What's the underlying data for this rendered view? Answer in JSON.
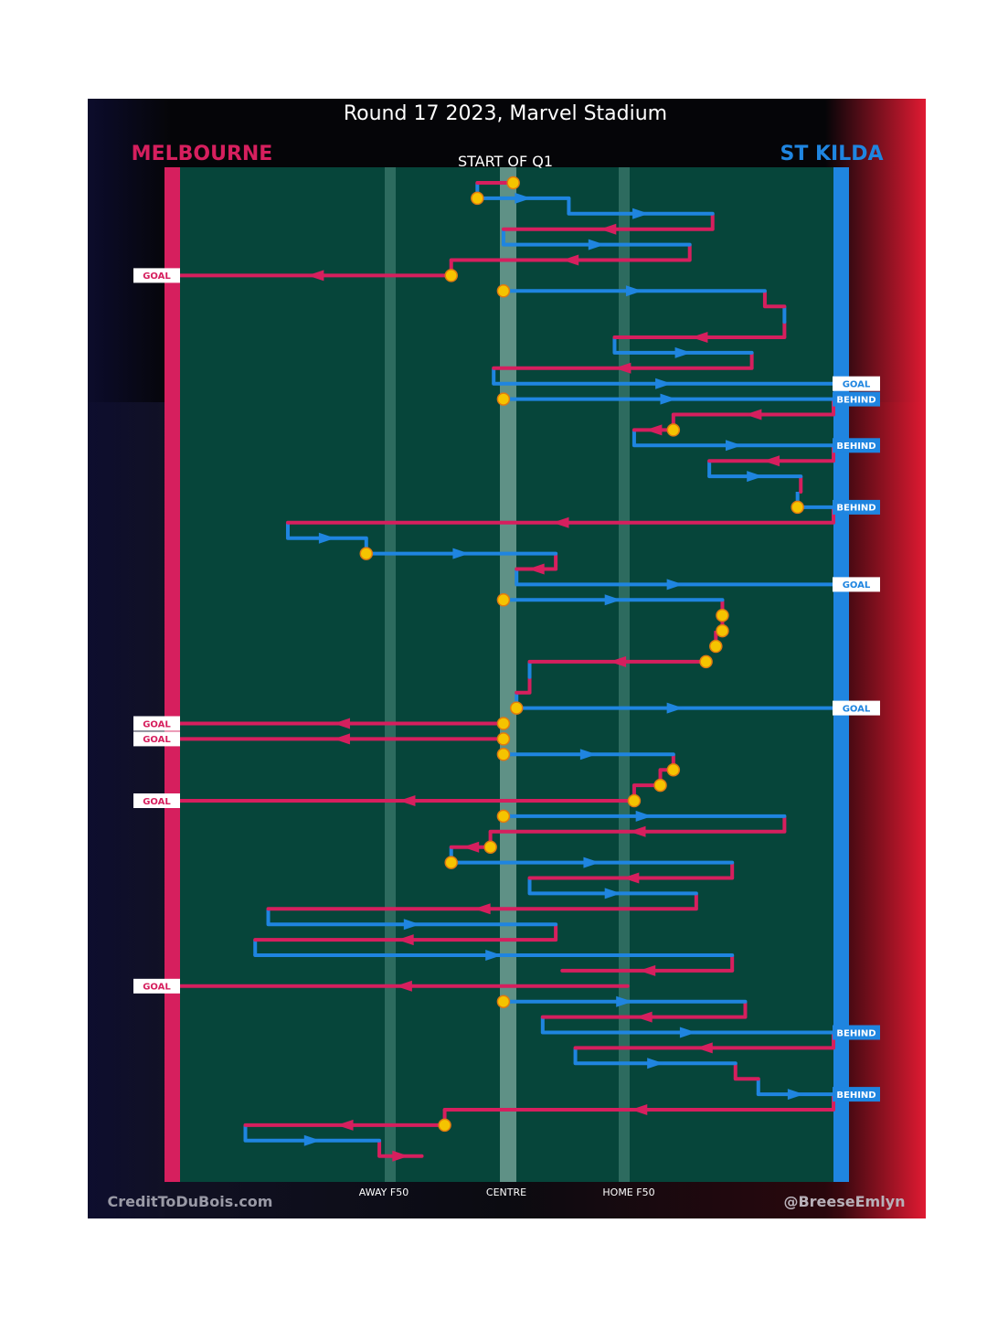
{
  "chart_data": {
    "type": "line",
    "title": "Round 17 2023, Marvel Stadium",
    "subtitle": "START OF Q1",
    "teams": {
      "left": "MELBOURNE",
      "right": "ST KILDA"
    },
    "x_axis_labels": {
      "away_f50": "AWAY F50",
      "centre": "CENTRE",
      "home_f50": "HOME F50"
    },
    "credit_left": "CreditToDuBois.com",
    "credit_right": "@BreeseEmlyn",
    "colors": {
      "melbourne": "#d61f5e",
      "stkilda": "#1f85e0",
      "field": "#06453a",
      "bounce": "#f5c400",
      "bounce_ring": "#e07a10"
    },
    "x_scale_note": "x is field position: 0 = Melbourne goal line (left), 100 = St Kilda goal line (right)",
    "chains": [
      {
        "team": "MEL",
        "y": 1,
        "x_start": 51.0,
        "x_end": 45.5,
        "bounce": true
      },
      {
        "team": "STK",
        "y": 2,
        "x_start": 45.5,
        "x_end": 59.5,
        "bounce": true
      },
      {
        "team": "STK",
        "y": 3,
        "x_start": 59.5,
        "x_end": 81.5
      },
      {
        "team": "MEL",
        "y": 4,
        "x_start": 81.5,
        "x_end": 49.5
      },
      {
        "team": "STK",
        "y": 5,
        "x_start": 49.5,
        "x_end": 78.0
      },
      {
        "team": "MEL",
        "y": 6,
        "x_start": 78.0,
        "x_end": 41.5
      },
      {
        "team": "MEL",
        "y": 7,
        "x_start": 41.5,
        "x_end": 0,
        "result": "GOAL",
        "bounce": true
      },
      {
        "team": "STK",
        "y": 8,
        "x_start": 49.5,
        "x_end": 89.5,
        "bounce": true
      },
      {
        "team": "MEL",
        "y": 9,
        "x_start": 89.5,
        "x_end": 92.5
      },
      {
        "team": "STK",
        "y": 10,
        "x_start": 92.5,
        "x_end": 92.5
      },
      {
        "team": "MEL",
        "y": 11,
        "x_start": 92.5,
        "x_end": 66.5
      },
      {
        "team": "STK",
        "y": 12,
        "x_start": 66.5,
        "x_end": 87.5
      },
      {
        "team": "MEL",
        "y": 13,
        "x_start": 87.5,
        "x_end": 48.0
      },
      {
        "team": "STK",
        "y": 14,
        "x_start": 48.0,
        "x_end": 100,
        "result": "GOAL"
      },
      {
        "team": "STK",
        "y": 15,
        "x_start": 49.5,
        "x_end": 100,
        "result": "BEHIND",
        "bounce": true
      },
      {
        "team": "MEL",
        "y": 16,
        "x_start": 100,
        "x_end": 75.5
      },
      {
        "team": "MEL",
        "y": 17,
        "x_start": 75.5,
        "x_end": 69.5,
        "bounce": true
      },
      {
        "team": "STK",
        "y": 18,
        "x_start": 69.5,
        "x_end": 100,
        "result": "BEHIND"
      },
      {
        "team": "MEL",
        "y": 19,
        "x_start": 100,
        "x_end": 81.0
      },
      {
        "team": "STK",
        "y": 20,
        "x_start": 81.0,
        "x_end": 95.0
      },
      {
        "team": "MEL",
        "y": 21,
        "x_start": 95.0,
        "x_end": 95.0
      },
      {
        "team": "STK",
        "y": 22,
        "x_start": 94.5,
        "x_end": 100,
        "result": "BEHIND",
        "bounce": true
      },
      {
        "team": "MEL",
        "y": 23,
        "x_start": 100,
        "x_end": 16.5
      },
      {
        "team": "STK",
        "y": 24,
        "x_start": 16.5,
        "x_end": 28.5
      },
      {
        "team": "STK",
        "y": 25,
        "x_start": 28.5,
        "x_end": 57.5,
        "bounce": true
      },
      {
        "team": "MEL",
        "y": 26,
        "x_start": 57.5,
        "x_end": 51.5
      },
      {
        "team": "STK",
        "y": 27,
        "x_start": 51.5,
        "x_end": 100,
        "result": "GOAL"
      },
      {
        "team": "STK",
        "y": 28,
        "x_start": 49.5,
        "x_end": 83.0,
        "bounce": true
      },
      {
        "team": "MEL",
        "y": 29,
        "x_start": 83.0,
        "x_end": 83.0,
        "bounce": true
      },
      {
        "team": "MEL",
        "y": 30,
        "x_start": 83.0,
        "x_end": 83.0,
        "bounce": true
      },
      {
        "team": "MEL",
        "y": 31,
        "x_start": 82.0,
        "x_end": 82.0,
        "bounce": true
      },
      {
        "team": "MEL",
        "y": 32,
        "x_start": 80.5,
        "x_end": 53.5,
        "bounce": true
      },
      {
        "team": "STK",
        "y": 33,
        "x_start": 53.5,
        "x_end": 53.5
      },
      {
        "team": "MEL",
        "y": 34,
        "x_start": 53.5,
        "x_end": 51.5
      },
      {
        "team": "STK",
        "y": 35,
        "x_start": 51.5,
        "x_end": 100,
        "result": "GOAL",
        "bounce": true
      },
      {
        "team": "MEL",
        "y": 36,
        "x_start": 49.5,
        "x_end": 0,
        "result": "GOAL",
        "bounce": true
      },
      {
        "team": "MEL",
        "y": 37,
        "x_start": 49.5,
        "x_end": 0,
        "result": "GOAL",
        "bounce": true
      },
      {
        "team": "STK",
        "y": 38,
        "x_start": 49.5,
        "x_end": 75.5,
        "bounce": true
      },
      {
        "team": "MEL",
        "y": 39,
        "x_start": 75.5,
        "x_end": 73.5,
        "bounce": true
      },
      {
        "team": "MEL",
        "y": 40,
        "x_start": 73.5,
        "x_end": 69.5,
        "bounce": true
      },
      {
        "team": "MEL",
        "y": 41,
        "x_start": 69.5,
        "x_end": 0,
        "result": "GOAL",
        "bounce": true
      },
      {
        "team": "STK",
        "y": 42,
        "x_start": 49.5,
        "x_end": 92.5,
        "bounce": true
      },
      {
        "team": "MEL",
        "y": 43,
        "x_start": 92.5,
        "x_end": 47.5
      },
      {
        "team": "MEL",
        "y": 44,
        "x_start": 47.5,
        "x_end": 41.5,
        "bounce": true
      },
      {
        "team": "STK",
        "y": 45,
        "x_start": 41.5,
        "x_end": 84.5,
        "bounce": true
      },
      {
        "team": "MEL",
        "y": 46,
        "x_start": 84.5,
        "x_end": 53.5
      },
      {
        "team": "STK",
        "y": 47,
        "x_start": 53.5,
        "x_end": 79.0
      },
      {
        "team": "MEL",
        "y": 48,
        "x_start": 79.0,
        "x_end": 13.5
      },
      {
        "team": "STK",
        "y": 49,
        "x_start": 13.5,
        "x_end": 57.5
      },
      {
        "team": "MEL",
        "y": 50,
        "x_start": 57.5,
        "x_end": 11.5
      },
      {
        "team": "STK",
        "y": 51,
        "x_start": 11.5,
        "x_end": 84.5
      },
      {
        "team": "MEL",
        "y": 52,
        "x_start": 84.5,
        "x_end": 58.5
      },
      {
        "team": "MEL",
        "y": 53,
        "x_start": 68.5,
        "x_end": 0,
        "result": "GOAL"
      },
      {
        "team": "STK",
        "y": 54,
        "x_start": 49.5,
        "x_end": 86.5,
        "bounce": true
      },
      {
        "team": "MEL",
        "y": 55,
        "x_start": 86.5,
        "x_end": 55.5
      },
      {
        "team": "STK",
        "y": 56,
        "x_start": 55.5,
        "x_end": 100,
        "result": "BEHIND"
      },
      {
        "team": "MEL",
        "y": 57,
        "x_start": 100,
        "x_end": 60.5
      },
      {
        "team": "STK",
        "y": 58,
        "x_start": 60.5,
        "x_end": 85.0
      },
      {
        "team": "MEL",
        "y": 59,
        "x_start": 85.0,
        "x_end": 88.5
      },
      {
        "team": "STK",
        "y": 60,
        "x_start": 88.5,
        "x_end": 100,
        "result": "BEHIND"
      },
      {
        "team": "MEL",
        "y": 61,
        "x_start": 100,
        "x_end": 40.5
      },
      {
        "team": "MEL",
        "y": 62,
        "x_start": 40.5,
        "x_end": 10.0,
        "bounce": true
      },
      {
        "team": "STK",
        "y": 63,
        "x_start": 10.0,
        "x_end": 30.5
      },
      {
        "team": "MEL",
        "y": 64,
        "x_start": 30.5,
        "x_end": 37.0
      }
    ]
  }
}
